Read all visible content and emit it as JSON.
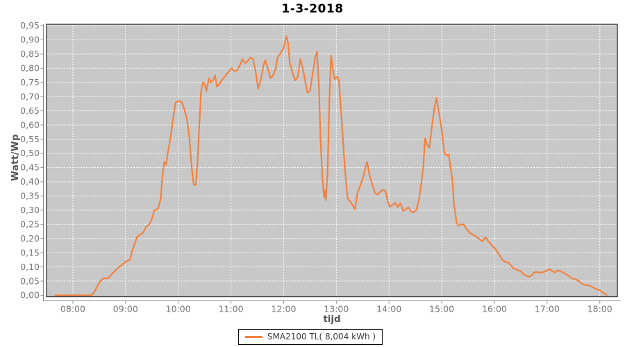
{
  "title": "1-3-2018",
  "colors": {
    "plot_bg": "#C8C8C8",
    "grid": "#FFFFFF",
    "series": "#F28240",
    "plot_border": "#3D3D3D",
    "axis_line": "#8A8A8A",
    "tick_label": "#757575",
    "axis_title": "#555555",
    "title_text": "#000000",
    "legend_border": "#000000",
    "legend_text": "#3C3C3C"
  },
  "x_axis": {
    "label": "tijd",
    "ticks": [
      "08:00",
      "09:00",
      "10:00",
      "11:00",
      "12:00",
      "13:00",
      "14:00",
      "15:00",
      "16:00",
      "17:00",
      "18:00"
    ],
    "tick_minutes": [
      480,
      540,
      600,
      660,
      720,
      780,
      840,
      900,
      960,
      1020,
      1080
    ]
  },
  "y_axis": {
    "label": "Watt/Wp",
    "ticks": [
      "0,00",
      "0,05",
      "0,10",
      "0,15",
      "0,20",
      "0,25",
      "0,30",
      "0,35",
      "0,40",
      "0,45",
      "0,50",
      "0,55",
      "0,60",
      "0,65",
      "0,70",
      "0,75",
      "0,80",
      "0,85",
      "0,90",
      "0,95"
    ]
  },
  "legend": {
    "series_label": "SMA2100 TL( 8,004 kWh )"
  },
  "chart_data": {
    "type": "line",
    "title": "1-3-2018",
    "xlabel": "tijd",
    "ylabel": "Watt/Wp",
    "x_domain_minutes": [
      450,
      1100
    ],
    "ylim": [
      0,
      0.95
    ],
    "y_tick_step": 0.05,
    "grid": true,
    "grid_style": "white-dashed",
    "legend_position": "bottom",
    "x_tick_minutes": [
      480,
      540,
      600,
      660,
      720,
      780,
      840,
      900,
      960,
      1020,
      1080
    ],
    "x_tick_labels": [
      "08:00",
      "09:00",
      "10:00",
      "11:00",
      "12:00",
      "13:00",
      "14:00",
      "15:00",
      "16:00",
      "17:00",
      "18:00"
    ],
    "series": [
      {
        "name": "SMA2100 TL( 8,004 kWh )",
        "color": "#F28240",
        "points": [
          [
            460,
            0
          ],
          [
            468,
            0
          ],
          [
            476,
            0
          ],
          [
            484,
            0
          ],
          [
            492,
            0
          ],
          [
            500,
            0
          ],
          [
            503,
            0.005
          ],
          [
            506,
            0.02
          ],
          [
            511,
            0.05
          ],
          [
            515,
            0.06
          ],
          [
            520,
            0.06
          ],
          [
            526,
            0.08
          ],
          [
            531,
            0.095
          ],
          [
            537,
            0.11
          ],
          [
            541,
            0.12
          ],
          [
            545,
            0.125
          ],
          [
            548,
            0.16
          ],
          [
            553,
            0.205
          ],
          [
            557,
            0.215
          ],
          [
            560,
            0.22
          ],
          [
            563,
            0.24
          ],
          [
            567,
            0.25
          ],
          [
            570,
            0.27
          ],
          [
            573,
            0.3
          ],
          [
            577,
            0.305
          ],
          [
            580,
            0.34
          ],
          [
            582,
            0.42
          ],
          [
            584,
            0.47
          ],
          [
            586,
            0.46
          ],
          [
            588,
            0.5
          ],
          [
            591,
            0.55
          ],
          [
            594,
            0.62
          ],
          [
            597,
            0.68
          ],
          [
            601,
            0.685
          ],
          [
            604,
            0.68
          ],
          [
            607,
            0.655
          ],
          [
            610,
            0.62
          ],
          [
            613,
            0.545
          ],
          [
            615,
            0.46
          ],
          [
            617,
            0.4
          ],
          [
            618,
            0.388
          ],
          [
            620,
            0.39
          ],
          [
            622,
            0.47
          ],
          [
            624,
            0.6
          ],
          [
            626,
            0.72
          ],
          [
            628,
            0.75
          ],
          [
            630,
            0.745
          ],
          [
            632,
            0.72
          ],
          [
            635,
            0.765
          ],
          [
            637,
            0.75
          ],
          [
            640,
            0.76
          ],
          [
            642,
            0.775
          ],
          [
            644,
            0.735
          ],
          [
            647,
            0.745
          ],
          [
            650,
            0.76
          ],
          [
            654,
            0.775
          ],
          [
            658,
            0.79
          ],
          [
            661,
            0.8
          ],
          [
            664,
            0.79
          ],
          [
            667,
            0.792
          ],
          [
            670,
            0.81
          ],
          [
            673,
            0.832
          ],
          [
            676,
            0.818
          ],
          [
            679,
            0.825
          ],
          [
            682,
            0.838
          ],
          [
            685,
            0.833
          ],
          [
            688,
            0.79
          ],
          [
            691,
            0.728
          ],
          [
            694,
            0.76
          ],
          [
            697,
            0.81
          ],
          [
            699,
            0.828
          ],
          [
            702,
            0.8
          ],
          [
            705,
            0.765
          ],
          [
            708,
            0.775
          ],
          [
            711,
            0.8
          ],
          [
            713,
            0.838
          ],
          [
            716,
            0.85
          ],
          [
            718,
            0.862
          ],
          [
            720,
            0.87
          ],
          [
            723,
            0.912
          ],
          [
            725,
            0.89
          ],
          [
            727,
            0.82
          ],
          [
            730,
            0.785
          ],
          [
            733,
            0.757
          ],
          [
            736,
            0.77
          ],
          [
            739,
            0.832
          ],
          [
            741,
            0.81
          ],
          [
            744,
            0.765
          ],
          [
            747,
            0.714
          ],
          [
            750,
            0.72
          ],
          [
            753,
            0.78
          ],
          [
            756,
            0.84
          ],
          [
            758,
            0.858
          ],
          [
            760,
            0.75
          ],
          [
            762,
            0.55
          ],
          [
            764,
            0.42
          ],
          [
            766,
            0.345
          ],
          [
            767,
            0.37
          ],
          [
            768,
            0.335
          ],
          [
            770,
            0.43
          ],
          [
            772,
            0.68
          ],
          [
            774,
            0.845
          ],
          [
            776,
            0.8
          ],
          [
            778,
            0.762
          ],
          [
            781,
            0.77
          ],
          [
            783,
            0.757
          ],
          [
            786,
            0.62
          ],
          [
            789,
            0.48
          ],
          [
            791,
            0.4
          ],
          [
            793,
            0.34
          ],
          [
            796,
            0.33
          ],
          [
            799,
            0.315
          ],
          [
            801,
            0.302
          ],
          [
            804,
            0.36
          ],
          [
            807,
            0.385
          ],
          [
            810,
            0.41
          ],
          [
            813,
            0.45
          ],
          [
            815,
            0.47
          ],
          [
            818,
            0.42
          ],
          [
            821,
            0.39
          ],
          [
            824,
            0.36
          ],
          [
            827,
            0.355
          ],
          [
            830,
            0.365
          ],
          [
            833,
            0.372
          ],
          [
            836,
            0.368
          ],
          [
            839,
            0.325
          ],
          [
            841,
            0.312
          ],
          [
            844,
            0.318
          ],
          [
            847,
            0.326
          ],
          [
            850,
            0.31
          ],
          [
            853,
            0.325
          ],
          [
            856,
            0.298
          ],
          [
            859,
            0.302
          ],
          [
            862,
            0.31
          ],
          [
            865,
            0.295
          ],
          [
            868,
            0.292
          ],
          [
            871,
            0.3
          ],
          [
            874,
            0.335
          ],
          [
            877,
            0.4
          ],
          [
            879,
            0.45
          ],
          [
            881,
            0.553
          ],
          [
            884,
            0.527
          ],
          [
            886,
            0.52
          ],
          [
            889,
            0.6
          ],
          [
            892,
            0.665
          ],
          [
            894,
            0.695
          ],
          [
            897,
            0.64
          ],
          [
            900,
            0.583
          ],
          [
            903,
            0.5
          ],
          [
            906,
            0.492
          ],
          [
            908,
            0.497
          ],
          [
            910,
            0.45
          ],
          [
            912,
            0.41
          ],
          [
            914,
            0.32
          ],
          [
            917,
            0.255
          ],
          [
            919,
            0.245
          ],
          [
            922,
            0.25
          ],
          [
            925,
            0.25
          ],
          [
            928,
            0.235
          ],
          [
            932,
            0.22
          ],
          [
            936,
            0.213
          ],
          [
            940,
            0.205
          ],
          [
            943,
            0.198
          ],
          [
            946,
            0.19
          ],
          [
            950,
            0.205
          ],
          [
            953,
            0.19
          ],
          [
            956,
            0.18
          ],
          [
            959,
            0.17
          ],
          [
            963,
            0.155
          ],
          [
            966,
            0.14
          ],
          [
            969,
            0.125
          ],
          [
            972,
            0.118
          ],
          [
            976,
            0.115
          ],
          [
            979,
            0.105
          ],
          [
            981,
            0.097
          ],
          [
            984,
            0.092
          ],
          [
            987,
            0.088
          ],
          [
            990,
            0.085
          ],
          [
            993,
            0.075
          ],
          [
            997,
            0.068
          ],
          [
            1000,
            0.065
          ],
          [
            1003,
            0.072
          ],
          [
            1005,
            0.08
          ],
          [
            1008,
            0.082
          ],
          [
            1011,
            0.08
          ],
          [
            1014,
            0.081
          ],
          [
            1017,
            0.083
          ],
          [
            1020,
            0.088
          ],
          [
            1023,
            0.092
          ],
          [
            1026,
            0.085
          ],
          [
            1029,
            0.08
          ],
          [
            1032,
            0.088
          ],
          [
            1035,
            0.085
          ],
          [
            1038,
            0.08
          ],
          [
            1041,
            0.075
          ],
          [
            1044,
            0.07
          ],
          [
            1047,
            0.062
          ],
          [
            1050,
            0.058
          ],
          [
            1053,
            0.056
          ],
          [
            1056,
            0.05
          ],
          [
            1059,
            0.042
          ],
          [
            1062,
            0.038
          ],
          [
            1065,
            0.036
          ],
          [
            1068,
            0.035
          ],
          [
            1071,
            0.03
          ],
          [
            1074,
            0.025
          ],
          [
            1077,
            0.02
          ],
          [
            1080,
            0.018
          ],
          [
            1083,
            0.01
          ],
          [
            1086,
            0.005
          ],
          [
            1088,
            0.002
          ]
        ]
      }
    ]
  }
}
